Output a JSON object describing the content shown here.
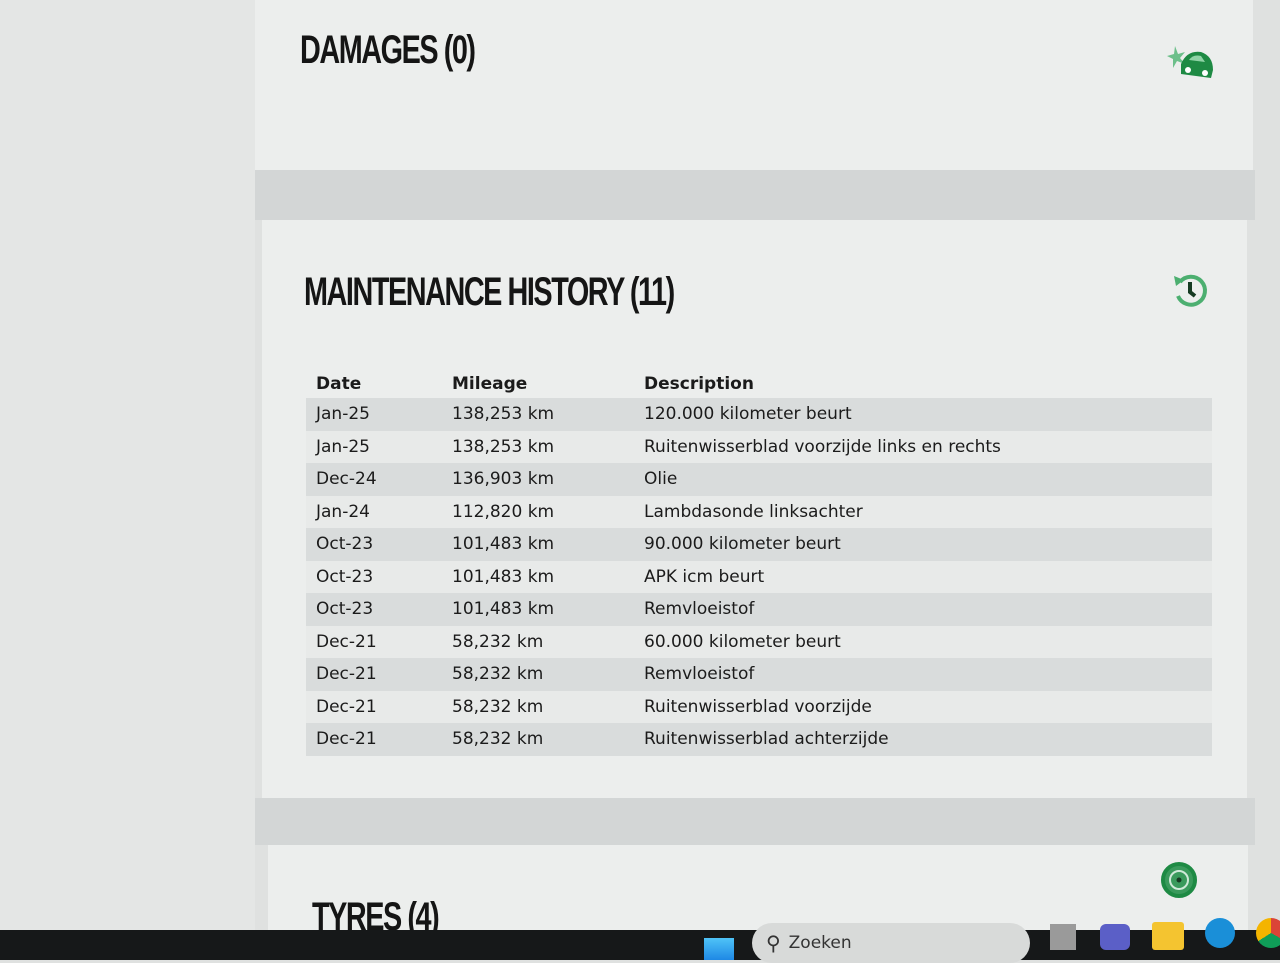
{
  "damages": {
    "title": "DAMAGES (0)",
    "icon": "car-crash-icon"
  },
  "maintenance": {
    "title": "MAINTENANCE HISTORY (11)",
    "icon": "history-icon",
    "columns": [
      "Date",
      "Mileage",
      "Description"
    ],
    "rows": [
      [
        "Jan-25",
        "138,253 km",
        "120.000 kilometer beurt"
      ],
      [
        "Jan-25",
        "138,253 km",
        "Ruitenwisserblad voorzijde links en rechts"
      ],
      [
        "Dec-24",
        "136,903 km",
        "Olie"
      ],
      [
        "Jan-24",
        "112,820 km",
        "Lambdasonde linksachter"
      ],
      [
        "Oct-23",
        "101,483 km",
        "90.000 kilometer beurt"
      ],
      [
        "Oct-23",
        "101,483 km",
        "APK icm beurt"
      ],
      [
        "Oct-23",
        "101,483 km",
        "Remvloeistof"
      ],
      [
        "Dec-21",
        "58,232 km",
        "60.000 kilometer beurt"
      ],
      [
        "Dec-21",
        "58,232 km",
        "Remvloeistof"
      ],
      [
        "Dec-21",
        "58,232 km",
        "Ruitenwisserblad voorzijde"
      ],
      [
        "Dec-21",
        "58,232 km",
        "Ruitenwisserblad achterzijde"
      ]
    ]
  },
  "tyres": {
    "title": "TYRES (4)",
    "icon": "tyre-icon"
  },
  "taskbar": {
    "search_placeholder": "Zoeken",
    "apps": [
      "start",
      "task-view",
      "teams",
      "file-explorer",
      "edge",
      "chrome"
    ]
  },
  "colors": {
    "accent": "#1e8a44"
  }
}
